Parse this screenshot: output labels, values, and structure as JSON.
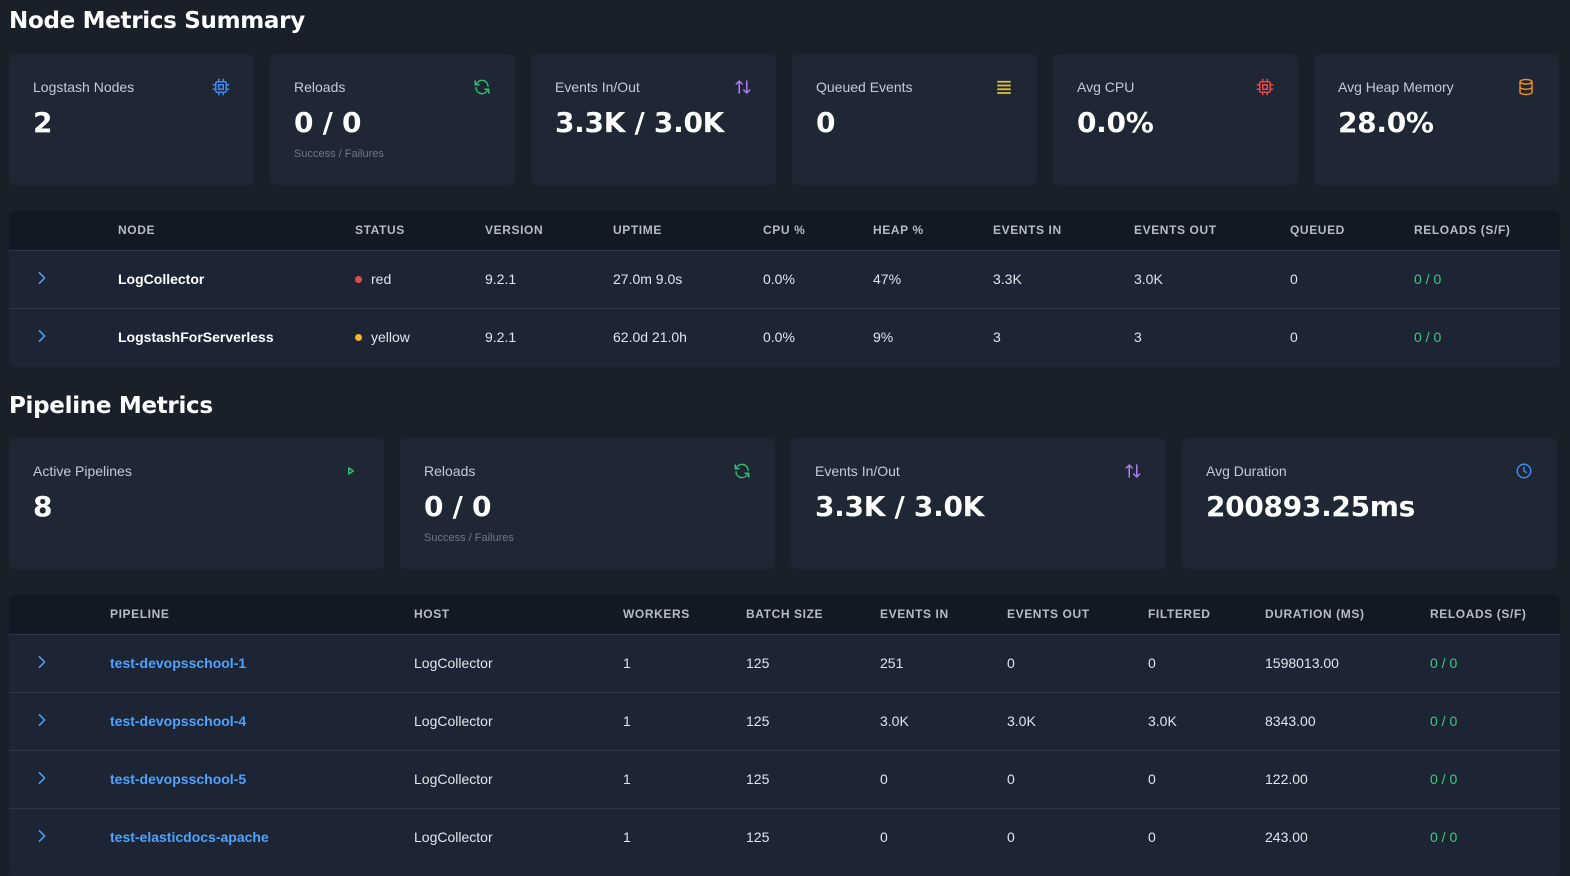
{
  "node_section": {
    "title": "Node Metrics Summary",
    "cards": [
      {
        "label": "Logstash Nodes",
        "value": "2",
        "sub": "",
        "icon": "cpu-icon",
        "color": "#3b8cf0"
      },
      {
        "label": "Reloads",
        "value": "0 / 0",
        "sub": "Success / Failures",
        "icon": "refresh-icon",
        "color": "#2fbf71"
      },
      {
        "label": "Events In/Out",
        "value": "3.3K / 3.0K",
        "sub": "",
        "icon": "arrows-updown-icon",
        "color": "#b07cf5"
      },
      {
        "label": "Queued Events",
        "value": "0",
        "sub": "",
        "icon": "list-icon",
        "color": "#e6c229"
      },
      {
        "label": "Avg CPU",
        "value": "0.0%",
        "sub": "",
        "icon": "cpu-icon",
        "color": "#e5484d"
      },
      {
        "label": "Avg Heap Memory",
        "value": "28.0%",
        "sub": "",
        "icon": "database-icon",
        "color": "#f08a24"
      }
    ],
    "table": {
      "columns": [
        "",
        "Node",
        "Status",
        "Version",
        "Uptime",
        "CPU %",
        "Heap %",
        "Events In",
        "Events Out",
        "Queued",
        "Reloads (S/F)"
      ],
      "rows": [
        {
          "node": "LogCollector",
          "status": "red",
          "status_color": "#e5484d",
          "version": "9.2.1",
          "uptime": "27.0m 9.0s",
          "cpu": "0.0%",
          "heap": "47%",
          "events_in": "3.3K",
          "events_out": "3.0K",
          "queued": "0",
          "reloads": "0 / 0"
        },
        {
          "node": "LogstashForServerless",
          "status": "yellow",
          "status_color": "#f5b820",
          "version": "9.2.1",
          "uptime": "62.0d 21.0h",
          "cpu": "0.0%",
          "heap": "9%",
          "events_in": "3",
          "events_out": "3",
          "queued": "0",
          "reloads": "0 / 0"
        }
      ]
    }
  },
  "pipeline_section": {
    "title": "Pipeline Metrics",
    "cards": [
      {
        "label": "Active Pipelines",
        "value": "8",
        "sub": "",
        "icon": "play-icon",
        "color": "#2fbf71"
      },
      {
        "label": "Reloads",
        "value": "0 / 0",
        "sub": "Success / Failures",
        "icon": "refresh-icon",
        "color": "#2fbf71"
      },
      {
        "label": "Events In/Out",
        "value": "3.3K / 3.0K",
        "sub": "",
        "icon": "arrows-updown-icon",
        "color": "#b07cf5"
      },
      {
        "label": "Avg Duration",
        "value": "200893.25ms",
        "sub": "",
        "icon": "clock-icon",
        "color": "#3b8cf0"
      }
    ],
    "table": {
      "columns": [
        "",
        "Pipeline",
        "Host",
        "Workers",
        "Batch Size",
        "Events In",
        "Events Out",
        "Filtered",
        "Duration (ms)",
        "Reloads (S/F)"
      ],
      "rows": [
        {
          "pipeline": "test-devopsschool-1",
          "host": "LogCollector",
          "workers": "1",
          "batch": "125",
          "events_in": "251",
          "events_out": "0",
          "filtered": "0",
          "duration": "1598013.00",
          "reloads": "0 / 0"
        },
        {
          "pipeline": "test-devopsschool-4",
          "host": "LogCollector",
          "workers": "1",
          "batch": "125",
          "events_in": "3.0K",
          "events_out": "3.0K",
          "filtered": "3.0K",
          "duration": "8343.00",
          "reloads": "0 / 0"
        },
        {
          "pipeline": "test-devopsschool-5",
          "host": "LogCollector",
          "workers": "1",
          "batch": "125",
          "events_in": "0",
          "events_out": "0",
          "filtered": "0",
          "duration": "122.00",
          "reloads": "0 / 0"
        },
        {
          "pipeline": "test-elasticdocs-apache",
          "host": "LogCollector",
          "workers": "1",
          "batch": "125",
          "events_in": "0",
          "events_out": "0",
          "filtered": "0",
          "duration": "243.00",
          "reloads": "0 / 0"
        }
      ]
    }
  }
}
